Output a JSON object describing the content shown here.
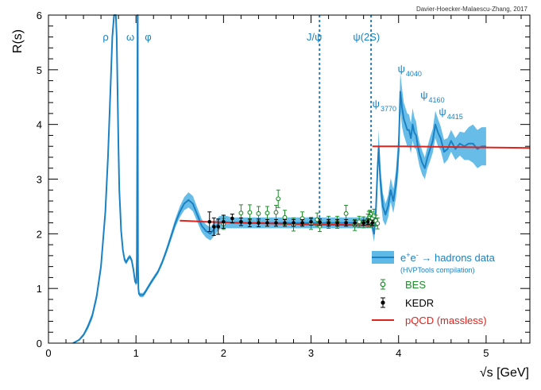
{
  "credit": "Davier-Hoecker-Malaescu-Zhang, 2017",
  "colors": {
    "hvp": "#1a82c4",
    "band": "#36a7e0",
    "bes": "#1f8c2b",
    "kedr": "#000000",
    "pqcd": "#e0231d"
  },
  "chart_data": {
    "type": "line",
    "xlabel": "√s   [GeV]",
    "ylabel": "R(s)",
    "xlim": [
      0,
      5.5
    ],
    "ylim": [
      0,
      6
    ],
    "x_ticks": [
      "0",
      "1",
      "2",
      "3",
      "4",
      "5"
    ],
    "y_ticks": [
      "0",
      "1",
      "2",
      "3",
      "4",
      "5",
      "6"
    ],
    "grid": false,
    "legend_position": "bottom-right",
    "legend": [
      {
        "label": "e⁺e⁻ → hadrons data",
        "sublabel": "(HVPTools compilation)"
      },
      {
        "label": "BES"
      },
      {
        "label": "KEDR"
      },
      {
        "label": "pQCD (massless)"
      }
    ],
    "annotations": [
      {
        "text": "ρ",
        "x": 0.62
      },
      {
        "text": "ω",
        "x": 0.89
      },
      {
        "text": "φ",
        "x": 1.1
      },
      {
        "text": "J/ψ",
        "x": 2.95
      },
      {
        "text": "ψ(2S)",
        "x": 3.48
      },
      {
        "text": "ψ",
        "sub": "3770",
        "x": 3.7
      },
      {
        "text": "ψ",
        "sub": "4040",
        "x": 3.99
      },
      {
        "text": "ψ",
        "sub": "4160",
        "x": 4.25
      },
      {
        "text": "ψ",
        "sub": "4415",
        "x": 4.46
      }
    ],
    "vlines": [
      {
        "name": "J/ψ",
        "x": 3.097
      },
      {
        "name": "ψ(2S)",
        "x": 3.686
      }
    ],
    "series": [
      {
        "name": "e⁺e⁻ → hadrons data",
        "x": [
          0.28,
          0.35,
          0.4,
          0.45,
          0.5,
          0.55,
          0.6,
          0.65,
          0.68,
          0.71,
          0.73,
          0.75,
          0.76,
          0.77,
          0.78,
          0.79,
          0.8,
          0.81,
          0.83,
          0.85,
          0.87,
          0.89,
          0.91,
          0.93,
          0.95,
          0.97,
          0.99,
          1.005,
          1.01,
          1.015,
          1.018,
          1.019,
          1.02,
          1.021,
          1.023,
          1.027,
          1.035,
          1.05,
          1.08,
          1.1,
          1.13,
          1.16,
          1.2,
          1.25,
          1.3,
          1.35,
          1.4,
          1.45,
          1.5,
          1.55,
          1.6,
          1.65,
          1.7,
          1.75,
          1.8,
          1.85,
          1.9,
          1.95,
          2.0,
          2.1,
          2.2,
          2.3,
          2.4,
          2.5,
          2.6,
          2.7,
          2.8,
          2.9,
          3.0,
          3.1,
          3.2,
          3.3,
          3.4,
          3.5,
          3.6,
          3.69,
          3.72,
          3.74,
          3.76,
          3.773,
          3.79,
          3.82,
          3.85,
          3.88,
          3.91,
          3.94,
          3.97,
          4.0,
          4.02,
          4.04,
          4.06,
          4.08,
          4.1,
          4.12,
          4.14,
          4.16,
          4.18,
          4.2,
          4.22,
          4.24,
          4.27,
          4.3,
          4.33,
          4.36,
          4.39,
          4.42,
          4.45,
          4.48,
          4.52,
          4.56,
          4.6,
          4.65,
          4.7,
          4.75,
          4.8,
          4.85,
          4.9,
          4.95,
          5.0
        ],
        "y": [
          0,
          0.06,
          0.15,
          0.3,
          0.5,
          0.85,
          1.4,
          2.4,
          3.4,
          4.7,
          5.6,
          6.1,
          6.3,
          6.2,
          5.6,
          4.6,
          3.6,
          2.8,
          2.05,
          1.7,
          1.52,
          1.48,
          1.55,
          1.58,
          1.52,
          1.35,
          1.12,
          1.1,
          1.6,
          4.0,
          6.2,
          6.5,
          6.2,
          3.5,
          1.45,
          1.0,
          0.9,
          0.88,
          0.88,
          0.92,
          1.0,
          1.08,
          1.18,
          1.3,
          1.48,
          1.7,
          1.95,
          2.2,
          2.4,
          2.55,
          2.62,
          2.55,
          2.35,
          2.15,
          2.05,
          2.0,
          2.1,
          2.2,
          2.22,
          2.2,
          2.2,
          2.2,
          2.2,
          2.2,
          2.2,
          2.2,
          2.2,
          2.2,
          2.2,
          2.2,
          2.2,
          2.2,
          2.2,
          2.2,
          2.2,
          2.2,
          2.0,
          2.4,
          3.2,
          3.6,
          3.0,
          2.5,
          2.35,
          2.5,
          2.8,
          2.6,
          2.9,
          3.5,
          4.6,
          4.3,
          4.1,
          4.0,
          3.9,
          3.9,
          3.75,
          4.0,
          3.85,
          3.8,
          3.6,
          3.45,
          3.3,
          3.2,
          3.4,
          3.55,
          3.7,
          4.0,
          3.85,
          3.75,
          3.5,
          3.55,
          3.7,
          3.55,
          3.65,
          3.6,
          3.65,
          3.65,
          3.55,
          3.6,
          3.6
        ],
        "band": [
          0,
          0.02,
          0.03,
          0.05,
          0.06,
          0.08,
          0.1,
          0.12,
          0.14,
          0.15,
          0.15,
          0.15,
          0.15,
          0.15,
          0.15,
          0.15,
          0.12,
          0.1,
          0.08,
          0.06,
          0.05,
          0.04,
          0.04,
          0.04,
          0.04,
          0.04,
          0.04,
          0.05,
          0.1,
          0.15,
          0.15,
          0.15,
          0.15,
          0.15,
          0.08,
          0.05,
          0.04,
          0.04,
          0.04,
          0.04,
          0.04,
          0.04,
          0.04,
          0.04,
          0.05,
          0.06,
          0.07,
          0.08,
          0.1,
          0.12,
          0.14,
          0.14,
          0.13,
          0.12,
          0.12,
          0.12,
          0.13,
          0.12,
          0.12,
          0.1,
          0.1,
          0.1,
          0.1,
          0.1,
          0.1,
          0.1,
          0.1,
          0.1,
          0.1,
          0.1,
          0.1,
          0.1,
          0.1,
          0.1,
          0.1,
          0.1,
          0.15,
          0.2,
          0.25,
          0.3,
          0.28,
          0.25,
          0.2,
          0.2,
          0.22,
          0.22,
          0.25,
          0.35,
          0.35,
          0.35,
          0.3,
          0.3,
          0.3,
          0.28,
          0.28,
          0.3,
          0.28,
          0.25,
          0.22,
          0.22,
          0.22,
          0.2,
          0.2,
          0.22,
          0.22,
          0.25,
          0.25,
          0.22,
          0.22,
          0.2,
          0.2,
          0.2,
          0.22,
          0.25,
          0.3,
          0.35,
          0.35,
          0.35,
          0.35
        ]
      },
      {
        "name": "BES",
        "x": [
          2.0,
          2.2,
          2.3,
          2.4,
          2.5,
          2.6,
          2.625,
          2.7,
          2.8,
          2.9,
          3.0,
          3.07,
          3.1,
          3.2,
          3.3,
          3.4,
          3.5,
          3.55,
          3.6,
          3.65,
          3.66,
          3.67,
          3.68,
          3.7,
          3.72,
          3.74,
          3.76
        ],
        "y": [
          2.18,
          2.38,
          2.39,
          2.37,
          2.38,
          2.39,
          2.64,
          2.3,
          2.17,
          2.28,
          2.19,
          2.26,
          2.14,
          2.21,
          2.21,
          2.37,
          2.16,
          2.22,
          2.21,
          2.24,
          2.29,
          2.31,
          2.22,
          2.28,
          2.33,
          2.24,
          2.19
        ],
        "err": [
          0.1,
          0.15,
          0.14,
          0.13,
          0.12,
          0.13,
          0.16,
          0.13,
          0.12,
          0.12,
          0.11,
          0.12,
          0.1,
          0.11,
          0.11,
          0.15,
          0.1,
          0.1,
          0.1,
          0.12,
          0.12,
          0.12,
          0.1,
          0.12,
          0.12,
          0.1,
          0.1
        ]
      },
      {
        "name": "KEDR",
        "x": [
          1.84,
          1.89,
          1.94,
          2.0,
          2.1,
          2.2,
          2.3,
          2.4,
          2.5,
          2.6,
          2.7,
          2.8,
          2.9,
          3.0,
          3.1,
          3.2,
          3.3,
          3.4,
          3.5,
          3.6,
          3.65,
          3.7
        ],
        "y": [
          2.22,
          2.13,
          2.13,
          2.22,
          2.28,
          2.22,
          2.2,
          2.2,
          2.2,
          2.2,
          2.2,
          2.2,
          2.2,
          2.22,
          2.21,
          2.2,
          2.2,
          2.2,
          2.2,
          2.2,
          2.22,
          2.2
        ],
        "err": [
          0.18,
          0.16,
          0.14,
          0.12,
          0.08,
          0.07,
          0.07,
          0.07,
          0.06,
          0.06,
          0.06,
          0.06,
          0.06,
          0.06,
          0.06,
          0.06,
          0.06,
          0.06,
          0.05,
          0.05,
          0.05,
          0.05
        ]
      },
      {
        "name": "pQCD (massless)",
        "segments": [
          {
            "x": [
              1.5,
              1.8,
              2.0,
              2.5,
              3.0,
              3.5,
              3.7
            ],
            "y": [
              2.24,
              2.22,
              2.21,
              2.19,
              2.17,
              2.16,
              2.15
            ]
          },
          {
            "x": [
              3.7,
              4.0,
              4.5,
              5.0,
              5.5
            ],
            "y": [
              3.6,
              3.6,
              3.59,
              3.58,
              3.57
            ]
          }
        ]
      }
    ]
  }
}
